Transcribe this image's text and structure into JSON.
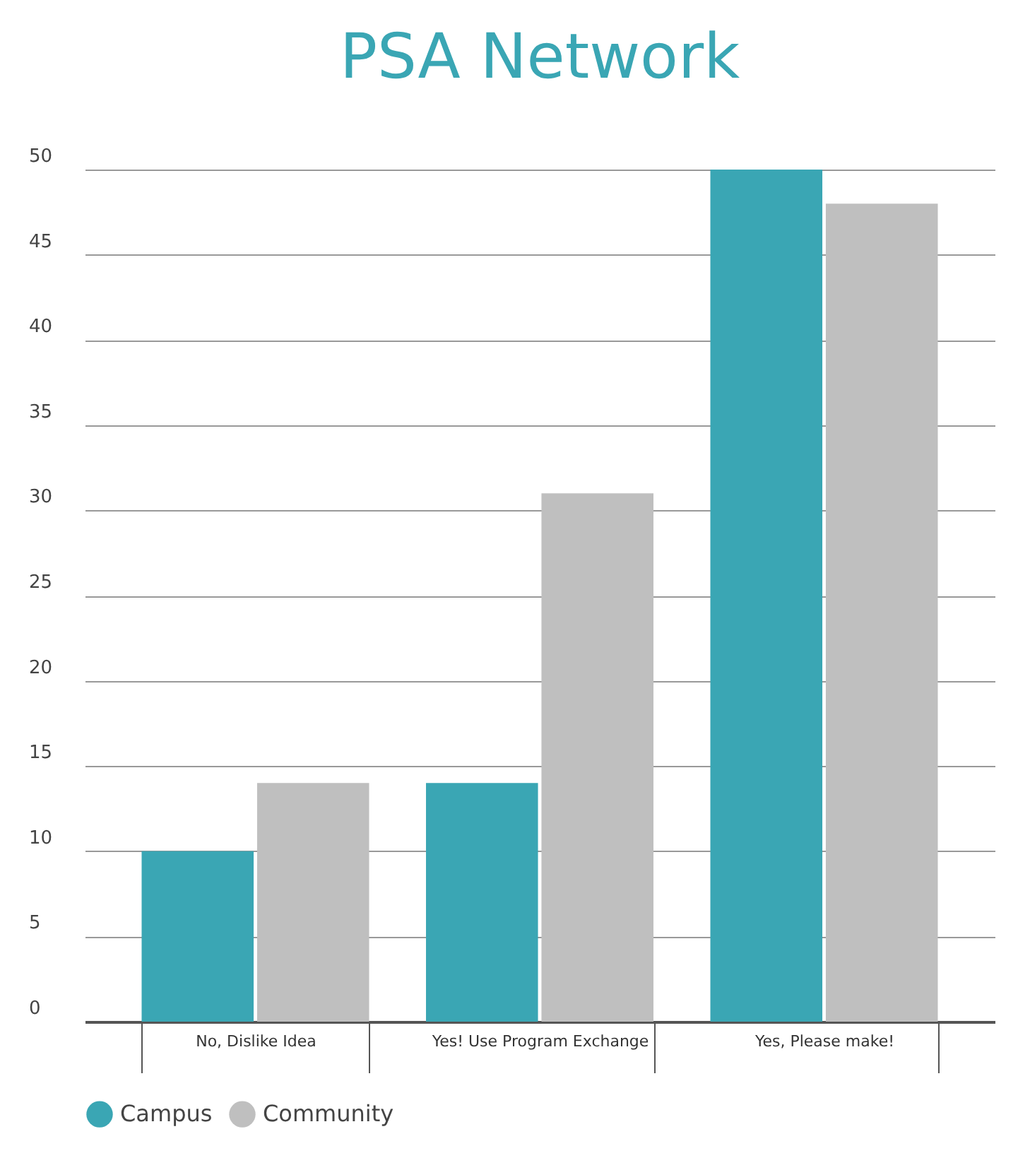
{
  "chart_data": {
    "type": "bar",
    "title": "PSA Network",
    "categories": [
      "No, Dislike Idea",
      "Yes! Use Program Exchange",
      "Yes, Please make!"
    ],
    "series": [
      {
        "name": "Campus",
        "color": "#3aa6b4",
        "values": [
          10,
          14,
          50
        ]
      },
      {
        "name": "Community",
        "color": "#bfbfbf",
        "values": [
          14,
          31,
          48
        ]
      }
    ],
    "ylim": [
      0,
      50
    ],
    "yticks": [
      0,
      5,
      10,
      15,
      20,
      25,
      30,
      35,
      40,
      45,
      50
    ],
    "grid": "y",
    "legend": "bottom"
  }
}
